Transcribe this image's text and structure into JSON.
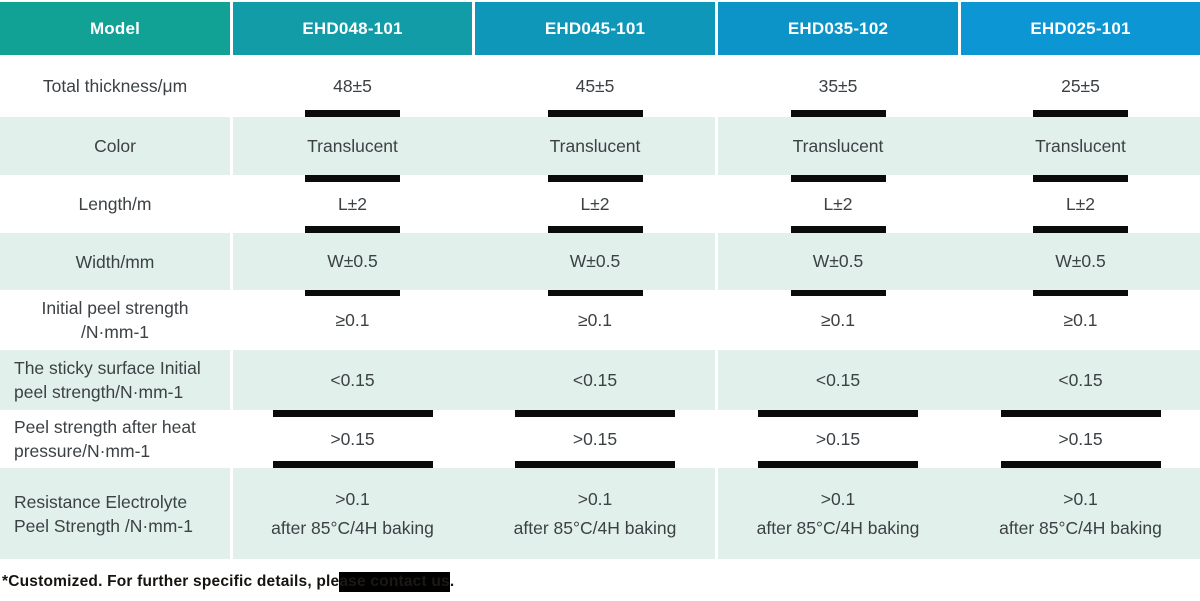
{
  "colors": {
    "header_cells": [
      "#12A295",
      "#129CA7",
      "#0F97B9",
      "#0C93C8",
      "#0C96D3"
    ],
    "row_tint": "#E2F0EC",
    "text": "#3C4144",
    "header_text": "#FFFFFF",
    "separator_bar": "#0B0B0B",
    "footnote_highlight": "#000000"
  },
  "table": {
    "header": {
      "model_label": "Model",
      "models": [
        "EHD048-101",
        "EHD045-101",
        "EHD035-102",
        "EHD025-101"
      ]
    },
    "rows": [
      {
        "label": "Total thickness/μm",
        "values": [
          "48±5",
          "45±5",
          "35±5",
          "25±5"
        ]
      },
      {
        "label": "Color",
        "values": [
          "Translucent",
          "Translucent",
          "Translucent",
          "Translucent"
        ]
      },
      {
        "label": "Length/m",
        "values": [
          "L±2",
          "L±2",
          "L±2",
          "L±2"
        ]
      },
      {
        "label": "Width/mm",
        "values": [
          "W±0.5",
          "W±0.5",
          "W±0.5",
          "W±0.5"
        ]
      },
      {
        "label": "Initial peel strength\n/N·mm-1",
        "values": [
          "≥0.1",
          "≥0.1",
          "≥0.1",
          "≥0.1"
        ]
      },
      {
        "label": "The sticky surface Initial\npeel strength/N·mm-1",
        "values": [
          "<0.15",
          "<0.15",
          "<0.15",
          "<0.15"
        ]
      },
      {
        "label": "Peel strength after heat\npressure/N·mm-1",
        "values": [
          ">0.15",
          ">0.15",
          ">0.15",
          ">0.15"
        ]
      },
      {
        "label": "Resistance Electrolyte\nPeel Strength /N·mm-1",
        "values": [
          ">0.1\nafter 85°C/4H baking",
          ">0.1\nafter 85°C/4H baking",
          ">0.1\nafter 85°C/4H baking",
          ">0.1\nafter 85°C/4H baking"
        ]
      }
    ],
    "footnote": {
      "prefix": "*Customized. For further specific details, ple",
      "highlighted": "ase contact us",
      "suffix": "."
    }
  }
}
